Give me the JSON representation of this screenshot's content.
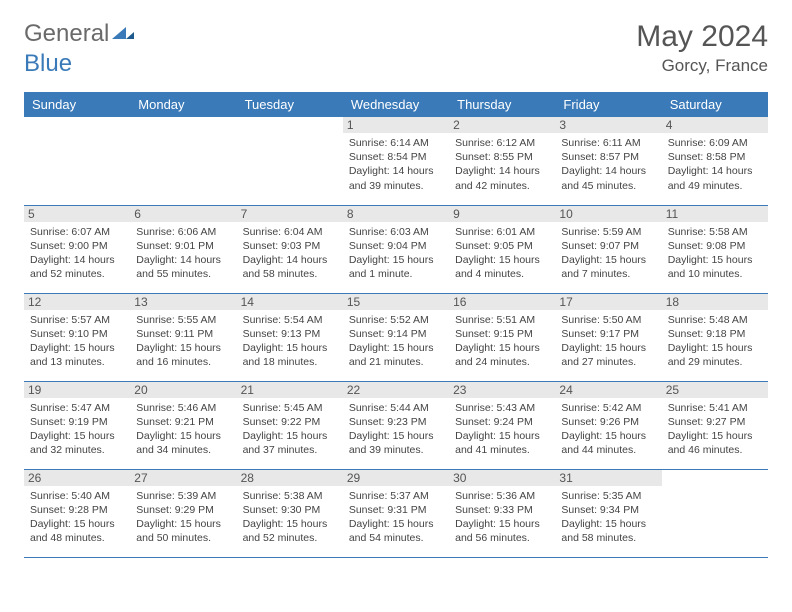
{
  "logo": {
    "text1": "General",
    "text2": "Blue"
  },
  "title": "May 2024",
  "location": "Gorcy, France",
  "colors": {
    "header_bg": "#3a7ab8",
    "header_fg": "#ffffff",
    "daynum_bg": "#e8e8e8",
    "border": "#3a7ab8",
    "logo_gray": "#6a6a6a",
    "logo_blue": "#3a7ab8"
  },
  "weekdays": [
    "Sunday",
    "Monday",
    "Tuesday",
    "Wednesday",
    "Thursday",
    "Friday",
    "Saturday"
  ],
  "weeks": [
    [
      null,
      null,
      null,
      {
        "d": "1",
        "sr": "6:14 AM",
        "ss": "8:54 PM",
        "dl": "14 hours and 39 minutes."
      },
      {
        "d": "2",
        "sr": "6:12 AM",
        "ss": "8:55 PM",
        "dl": "14 hours and 42 minutes."
      },
      {
        "d": "3",
        "sr": "6:11 AM",
        "ss": "8:57 PM",
        "dl": "14 hours and 45 minutes."
      },
      {
        "d": "4",
        "sr": "6:09 AM",
        "ss": "8:58 PM",
        "dl": "14 hours and 49 minutes."
      }
    ],
    [
      {
        "d": "5",
        "sr": "6:07 AM",
        "ss": "9:00 PM",
        "dl": "14 hours and 52 minutes."
      },
      {
        "d": "6",
        "sr": "6:06 AM",
        "ss": "9:01 PM",
        "dl": "14 hours and 55 minutes."
      },
      {
        "d": "7",
        "sr": "6:04 AM",
        "ss": "9:03 PM",
        "dl": "14 hours and 58 minutes."
      },
      {
        "d": "8",
        "sr": "6:03 AM",
        "ss": "9:04 PM",
        "dl": "15 hours and 1 minute."
      },
      {
        "d": "9",
        "sr": "6:01 AM",
        "ss": "9:05 PM",
        "dl": "15 hours and 4 minutes."
      },
      {
        "d": "10",
        "sr": "5:59 AM",
        "ss": "9:07 PM",
        "dl": "15 hours and 7 minutes."
      },
      {
        "d": "11",
        "sr": "5:58 AM",
        "ss": "9:08 PM",
        "dl": "15 hours and 10 minutes."
      }
    ],
    [
      {
        "d": "12",
        "sr": "5:57 AM",
        "ss": "9:10 PM",
        "dl": "15 hours and 13 minutes."
      },
      {
        "d": "13",
        "sr": "5:55 AM",
        "ss": "9:11 PM",
        "dl": "15 hours and 16 minutes."
      },
      {
        "d": "14",
        "sr": "5:54 AM",
        "ss": "9:13 PM",
        "dl": "15 hours and 18 minutes."
      },
      {
        "d": "15",
        "sr": "5:52 AM",
        "ss": "9:14 PM",
        "dl": "15 hours and 21 minutes."
      },
      {
        "d": "16",
        "sr": "5:51 AM",
        "ss": "9:15 PM",
        "dl": "15 hours and 24 minutes."
      },
      {
        "d": "17",
        "sr": "5:50 AM",
        "ss": "9:17 PM",
        "dl": "15 hours and 27 minutes."
      },
      {
        "d": "18",
        "sr": "5:48 AM",
        "ss": "9:18 PM",
        "dl": "15 hours and 29 minutes."
      }
    ],
    [
      {
        "d": "19",
        "sr": "5:47 AM",
        "ss": "9:19 PM",
        "dl": "15 hours and 32 minutes."
      },
      {
        "d": "20",
        "sr": "5:46 AM",
        "ss": "9:21 PM",
        "dl": "15 hours and 34 minutes."
      },
      {
        "d": "21",
        "sr": "5:45 AM",
        "ss": "9:22 PM",
        "dl": "15 hours and 37 minutes."
      },
      {
        "d": "22",
        "sr": "5:44 AM",
        "ss": "9:23 PM",
        "dl": "15 hours and 39 minutes."
      },
      {
        "d": "23",
        "sr": "5:43 AM",
        "ss": "9:24 PM",
        "dl": "15 hours and 41 minutes."
      },
      {
        "d": "24",
        "sr": "5:42 AM",
        "ss": "9:26 PM",
        "dl": "15 hours and 44 minutes."
      },
      {
        "d": "25",
        "sr": "5:41 AM",
        "ss": "9:27 PM",
        "dl": "15 hours and 46 minutes."
      }
    ],
    [
      {
        "d": "26",
        "sr": "5:40 AM",
        "ss": "9:28 PM",
        "dl": "15 hours and 48 minutes."
      },
      {
        "d": "27",
        "sr": "5:39 AM",
        "ss": "9:29 PM",
        "dl": "15 hours and 50 minutes."
      },
      {
        "d": "28",
        "sr": "5:38 AM",
        "ss": "9:30 PM",
        "dl": "15 hours and 52 minutes."
      },
      {
        "d": "29",
        "sr": "5:37 AM",
        "ss": "9:31 PM",
        "dl": "15 hours and 54 minutes."
      },
      {
        "d": "30",
        "sr": "5:36 AM",
        "ss": "9:33 PM",
        "dl": "15 hours and 56 minutes."
      },
      {
        "d": "31",
        "sr": "5:35 AM",
        "ss": "9:34 PM",
        "dl": "15 hours and 58 minutes."
      },
      null
    ]
  ],
  "labels": {
    "sunrise": "Sunrise:",
    "sunset": "Sunset:",
    "daylight": "Daylight:"
  }
}
